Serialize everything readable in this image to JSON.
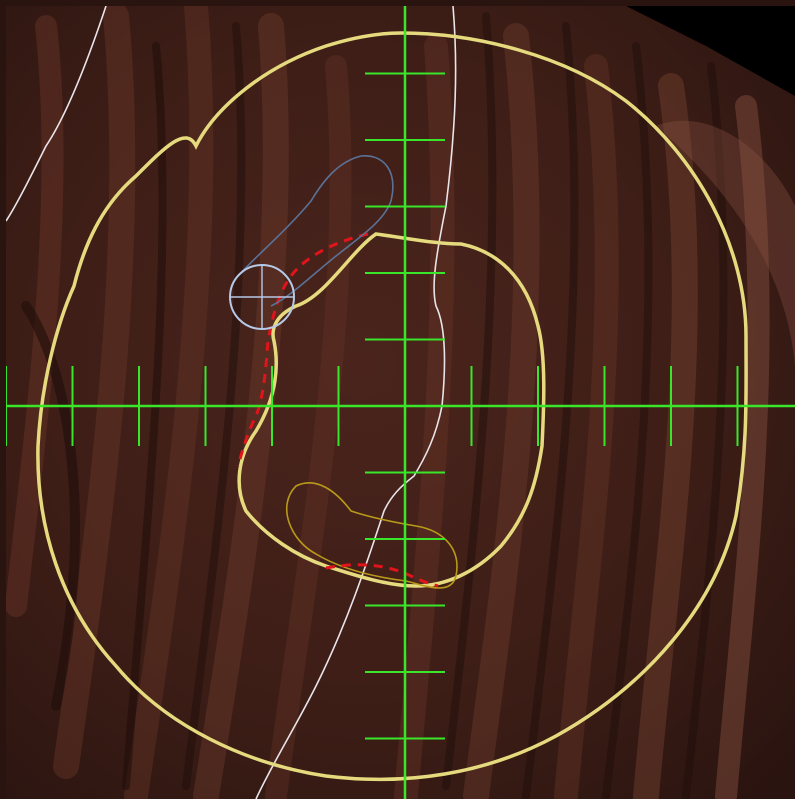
{
  "viewer": {
    "background_color": "#2a1410",
    "surface_color": "#5a2e22",
    "corner_fill_color": "#000000"
  },
  "overlays": {
    "crosshair_color": "#39e62a",
    "outer_contour_color": "#e6da7e",
    "inner_contour_color": "#e6da7e",
    "planned_path_color": "#e0141a",
    "tool_marker_color": "#b6c8e6",
    "tool_outline_color": "#5a7296",
    "small_contour_color": "#b89a1a",
    "reference_line_color": "#e8e4ea"
  }
}
